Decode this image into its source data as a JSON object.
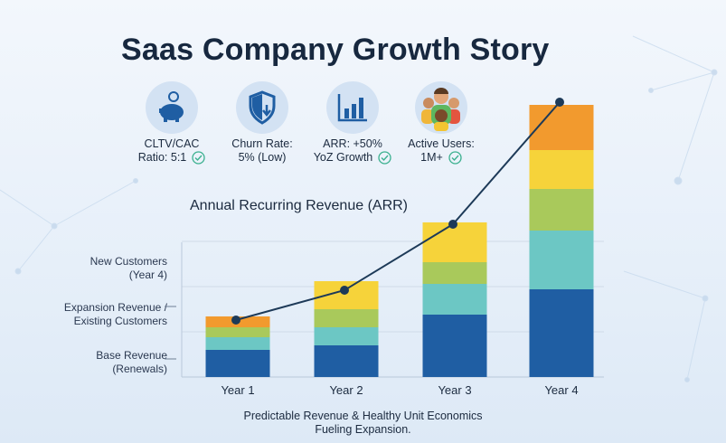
{
  "title": "Saas Company Growth Story",
  "kpis": [
    {
      "icon": "piggy-bank-icon",
      "line1": "CLTV/CAC",
      "line2": "Ratio: 5:1"
    },
    {
      "icon": "shield-down-arrow-icon",
      "line1": "Churn Rate:",
      "line2": "5% (Low)"
    },
    {
      "icon": "bar-chart-icon",
      "line1": "ARR: +50%",
      "line2": "YoZ Growth"
    },
    {
      "icon": "users-group-icon",
      "line1": "Active Users:",
      "line2": "1M+"
    }
  ],
  "colors": {
    "base": "#1f5ea3",
    "expansion": "#6cc7c4",
    "upsell": "#a9c95b",
    "new": "#f6d33a",
    "extra": "#f29a2e",
    "line": "#1d3a58",
    "check": "#3bb08f"
  },
  "chart_data": {
    "type": "bar",
    "stacked": true,
    "title": "Annual Recurring Revenue (ARR)",
    "categories": [
      "Year 1",
      "Year 2",
      "Year 3",
      "Year 4"
    ],
    "series": [
      {
        "key": "base",
        "color": "#1f5ea3",
        "values": [
          3.0,
          3.5,
          6.9,
          9.7
        ]
      },
      {
        "key": "expansion",
        "color": "#6cc7c4",
        "values": [
          1.4,
          2.0,
          3.4,
          6.5
        ]
      },
      {
        "key": "upsell",
        "color": "#a9c95b",
        "values": [
          1.1,
          2.0,
          2.4,
          4.6
        ]
      },
      {
        "key": "new",
        "color": "#f6d33a",
        "values": [
          0,
          3.1,
          4.4,
          4.3
        ]
      },
      {
        "key": "extra",
        "color": "#f29a2e",
        "values": [
          1.2,
          0,
          0,
          5.0
        ]
      }
    ],
    "line": {
      "name": "ARR trend",
      "values": [
        6.3,
        9.6,
        16.9,
        30.4
      ]
    },
    "y_labels": [
      {
        "text1": "New Customers",
        "text2": "(Year 4)"
      },
      {
        "text1": "Expansion Revenue /",
        "text2": "Existing Customers"
      },
      {
        "text1": "Base Revenue",
        "text2": "(Renewals)"
      }
    ],
    "ylim": [
      0,
      31
    ],
    "grid": true
  },
  "footer": {
    "line1": "Predictable Revenue & Healthy Unit Economics",
    "line2": "Fueling Expansion."
  }
}
